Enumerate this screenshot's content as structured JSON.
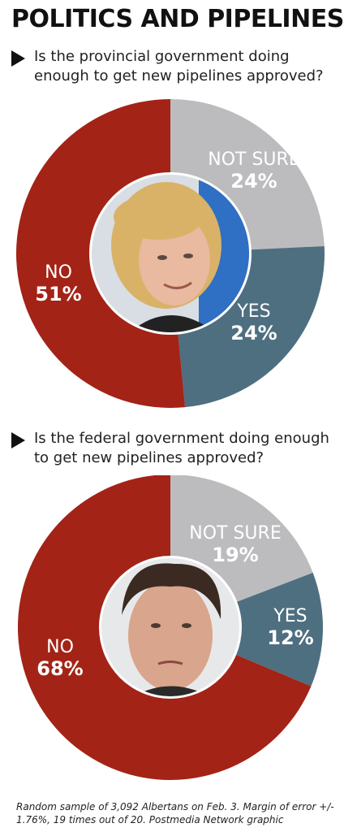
{
  "title": "POLITICS AND PIPELINES",
  "questions": [
    {
      "text": "Is the provincial government doing enough to get new pipelines approved?"
    },
    {
      "text": "Is the federal government doing enough to get new pipelines approved?"
    }
  ],
  "footnote": "Random sample of 3,092 Albertans on Feb. 3. Margin of error +/- 1.76%, 19 times out of 20.  Postmedia Network graphic",
  "colors": {
    "no": "#a32317",
    "yes": "#4e6f80",
    "not_sure": "#bcbcbe",
    "label_dark": "#ffffff",
    "label_light": "#ffffff"
  },
  "chart_data": [
    {
      "type": "pie",
      "donut": true,
      "center_image": "portrait-photo",
      "slices": [
        {
          "label": "NOT SURE",
          "value": 24,
          "display": "24%"
        },
        {
          "label": "YES",
          "value": 24,
          "display": "24%"
        },
        {
          "label": "NO",
          "value": 51,
          "display": "51%"
        }
      ]
    },
    {
      "type": "pie",
      "donut": true,
      "center_image": "portrait-photo",
      "slices": [
        {
          "label": "NOT SURE",
          "value": 19,
          "display": "19%"
        },
        {
          "label": "YES",
          "value": 12,
          "display": "12%"
        },
        {
          "label": "NO",
          "value": 68,
          "display": "68%"
        }
      ]
    }
  ]
}
